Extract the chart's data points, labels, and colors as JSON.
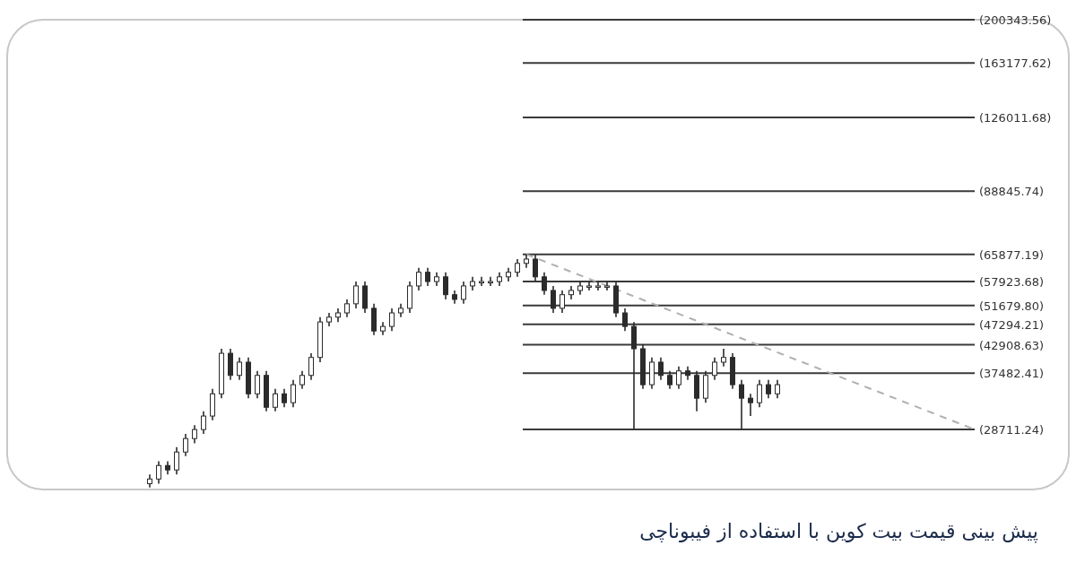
{
  "chart_data": {
    "type": "candlestick",
    "title": "پیش بینی قیمت بیت کوین با استفاده از فیبوناچی",
    "log": "y",
    "ylim": [
      21600,
      200343.56
    ],
    "color": "#2b2b2b",
    "categories": [
      null,
      null,
      null,
      null,
      null,
      null,
      null,
      null,
      null,
      null,
      null,
      null,
      null,
      null,
      null,
      null,
      null,
      null,
      null,
      null,
      null,
      null,
      null,
      null,
      null,
      null,
      null,
      null,
      null,
      null,
      null,
      null,
      null,
      null,
      null,
      null,
      null,
      null,
      null,
      null,
      null,
      null,
      null,
      null,
      null,
      null,
      null,
      null,
      null,
      null,
      null,
      null,
      null,
      null,
      null,
      null,
      null,
      null,
      null,
      null,
      null,
      null,
      null,
      null,
      null,
      null,
      null,
      null,
      null,
      null,
      null,
      null,
      null,
      null,
      null,
      null,
      null,
      null,
      null,
      null,
      null,
      null,
      null,
      null,
      null,
      null,
      null,
      null,
      null,
      null,
      null,
      null,
      null
    ],
    "ohlc": [
      [
        22200,
        23200,
        21800,
        22700
      ],
      [
        22700,
        24700,
        22200,
        24200
      ],
      [
        24200,
        24700,
        23200,
        23700
      ],
      [
        23700,
        26400,
        23200,
        25800
      ],
      [
        25800,
        28100,
        25300,
        27500
      ],
      [
        27500,
        29300,
        26900,
        28700
      ],
      [
        28700,
        31300,
        28100,
        30600
      ],
      [
        30600,
        34800,
        30000,
        34000
      ],
      [
        34000,
        42100,
        33300,
        41200
      ],
      [
        41200,
        42100,
        36300,
        37100
      ],
      [
        37100,
        40400,
        36300,
        39500
      ],
      [
        39500,
        40400,
        33300,
        34000
      ],
      [
        34000,
        37900,
        33300,
        37100
      ],
      [
        37100,
        37900,
        31300,
        31900
      ],
      [
        31900,
        34800,
        31300,
        34000
      ],
      [
        34000,
        34800,
        31900,
        32600
      ],
      [
        32600,
        36300,
        31900,
        35500
      ],
      [
        35500,
        37900,
        34800,
        37100
      ],
      [
        37100,
        41200,
        36300,
        40400
      ],
      [
        40400,
        48900,
        39500,
        47800
      ],
      [
        47800,
        49900,
        46800,
        48900
      ],
      [
        48900,
        51000,
        47800,
        49900
      ],
      [
        49900,
        53200,
        48900,
        52100
      ],
      [
        52100,
        57900,
        51000,
        56700
      ],
      [
        56700,
        57900,
        49900,
        51000
      ],
      [
        51000,
        52100,
        44900,
        45800
      ],
      [
        45800,
        47800,
        44900,
        46800
      ],
      [
        46800,
        51000,
        45800,
        49900
      ],
      [
        49900,
        52100,
        48900,
        51000
      ],
      [
        51000,
        57900,
        49900,
        56700
      ],
      [
        56700,
        61800,
        55500,
        60500
      ],
      [
        60500,
        61800,
        56700,
        57900
      ],
      [
        57900,
        60500,
        56700,
        59200
      ],
      [
        59200,
        60500,
        53200,
        54400
      ],
      [
        54400,
        55500,
        52100,
        53200
      ],
      [
        53200,
        57900,
        52100,
        56700
      ],
      [
        56700,
        59200,
        55500,
        57900
      ],
      [
        57900,
        59200,
        56700,
        57900
      ],
      [
        57900,
        59200,
        56700,
        57900
      ],
      [
        57900,
        60500,
        56700,
        59200
      ],
      [
        59200,
        61800,
        57900,
        60500
      ],
      [
        60500,
        64400,
        59200,
        63100
      ],
      [
        63100,
        65877,
        61800,
        64400
      ],
      [
        64400,
        65800,
        57900,
        59200
      ],
      [
        59200,
        60500,
        54400,
        55500
      ],
      [
        55500,
        56700,
        49900,
        51000
      ],
      [
        51000,
        55500,
        49900,
        54400
      ],
      [
        54400,
        56700,
        53200,
        55500
      ],
      [
        55500,
        57900,
        54400,
        56700
      ],
      [
        56700,
        57900,
        55500,
        56700
      ],
      [
        56700,
        57900,
        55500,
        56700
      ],
      [
        56700,
        57900,
        55500,
        56700
      ],
      [
        56700,
        57900,
        48900,
        49900
      ],
      [
        49900,
        51000,
        45800,
        46800
      ],
      [
        46800,
        47800,
        28700,
        42100
      ],
      [
        42100,
        43000,
        34800,
        35500
      ],
      [
        35500,
        40400,
        34800,
        39500
      ],
      [
        39500,
        40400,
        36300,
        37100
      ],
      [
        37100,
        37900,
        34800,
        35500
      ],
      [
        35500,
        38700,
        34800,
        37900
      ],
      [
        37900,
        38700,
        36300,
        37100
      ],
      [
        37100,
        37900,
        31300,
        33300
      ],
      [
        33300,
        37900,
        32600,
        37100
      ],
      [
        37100,
        40400,
        36300,
        39500
      ],
      [
        39500,
        42100,
        38700,
        40400
      ],
      [
        40400,
        41200,
        34800,
        35500
      ],
      [
        35500,
        36300,
        28700,
        33300
      ],
      [
        33300,
        34000,
        30600,
        32600
      ],
      [
        32600,
        36300,
        31900,
        35500
      ],
      [
        35500,
        36300,
        33300,
        34000
      ],
      [
        34000,
        36300,
        33300,
        35500
      ],
      null,
      null,
      null,
      null,
      null,
      null,
      null,
      null,
      null,
      null,
      null,
      null,
      null,
      null,
      null,
      null,
      null,
      null,
      null,
      null,
      null,
      null
    ],
    "series": [
      {
        "type": "line",
        "color": "#b0b0b0",
        "line_style": "dashed",
        "values": [
          null,
          null,
          null,
          null,
          null,
          null,
          null,
          null,
          null,
          null,
          null,
          null,
          null,
          null,
          null,
          null,
          null,
          null,
          null,
          null,
          null,
          null,
          null,
          null,
          null,
          null,
          null,
          null,
          null,
          null,
          null,
          null,
          null,
          null,
          null,
          null,
          null,
          null,
          null,
          null,
          null,
          null,
          65877.19,
          null,
          null,
          null,
          null,
          null,
          null,
          null,
          null,
          null,
          null,
          null,
          null,
          null,
          null,
          null,
          null,
          null,
          null,
          null,
          null,
          null,
          null,
          null,
          null,
          null,
          null,
          null,
          null,
          null,
          null,
          null,
          null,
          null,
          null,
          null,
          null,
          null,
          null,
          null,
          null,
          null,
          null,
          null,
          null,
          null,
          null,
          null,
          null,
          null,
          28711.24
        ]
      }
    ],
    "ref_lines": [
      {
        "axis": "y",
        "value": 200343.56,
        "label": "(200343.56)",
        "color": "#3a3a3a"
      },
      {
        "axis": "y",
        "value": 163177.62,
        "label": "(163177.62)",
        "color": "#3a3a3a"
      },
      {
        "axis": "y",
        "value": 126011.68,
        "label": "(126011.68)",
        "color": "#3a3a3a"
      },
      {
        "axis": "y",
        "value": 88845.74,
        "label": "(88845.74)",
        "color": "#3a3a3a"
      },
      {
        "axis": "y",
        "value": 65877.19,
        "label": "(65877.19)",
        "color": "#3a3a3a"
      },
      {
        "axis": "y",
        "value": 57923.68,
        "label": "(57923.68)",
        "color": "#3a3a3a"
      },
      {
        "axis": "y",
        "value": 51679.8,
        "label": "(51679.80)",
        "color": "#3a3a3a"
      },
      {
        "axis": "y",
        "value": 47294.21,
        "label": "(47294.21)",
        "color": "#3a3a3a"
      },
      {
        "axis": "y",
        "value": 42908.63,
        "label": "(42908.63)",
        "color": "#3a3a3a"
      },
      {
        "axis": "y",
        "value": 37482.41,
        "label": "(37482.41)",
        "color": "#3a3a3a"
      },
      {
        "axis": "y",
        "value": 28711.24,
        "label": "(28711.24)",
        "color": "#3a3a3a"
      }
    ]
  }
}
